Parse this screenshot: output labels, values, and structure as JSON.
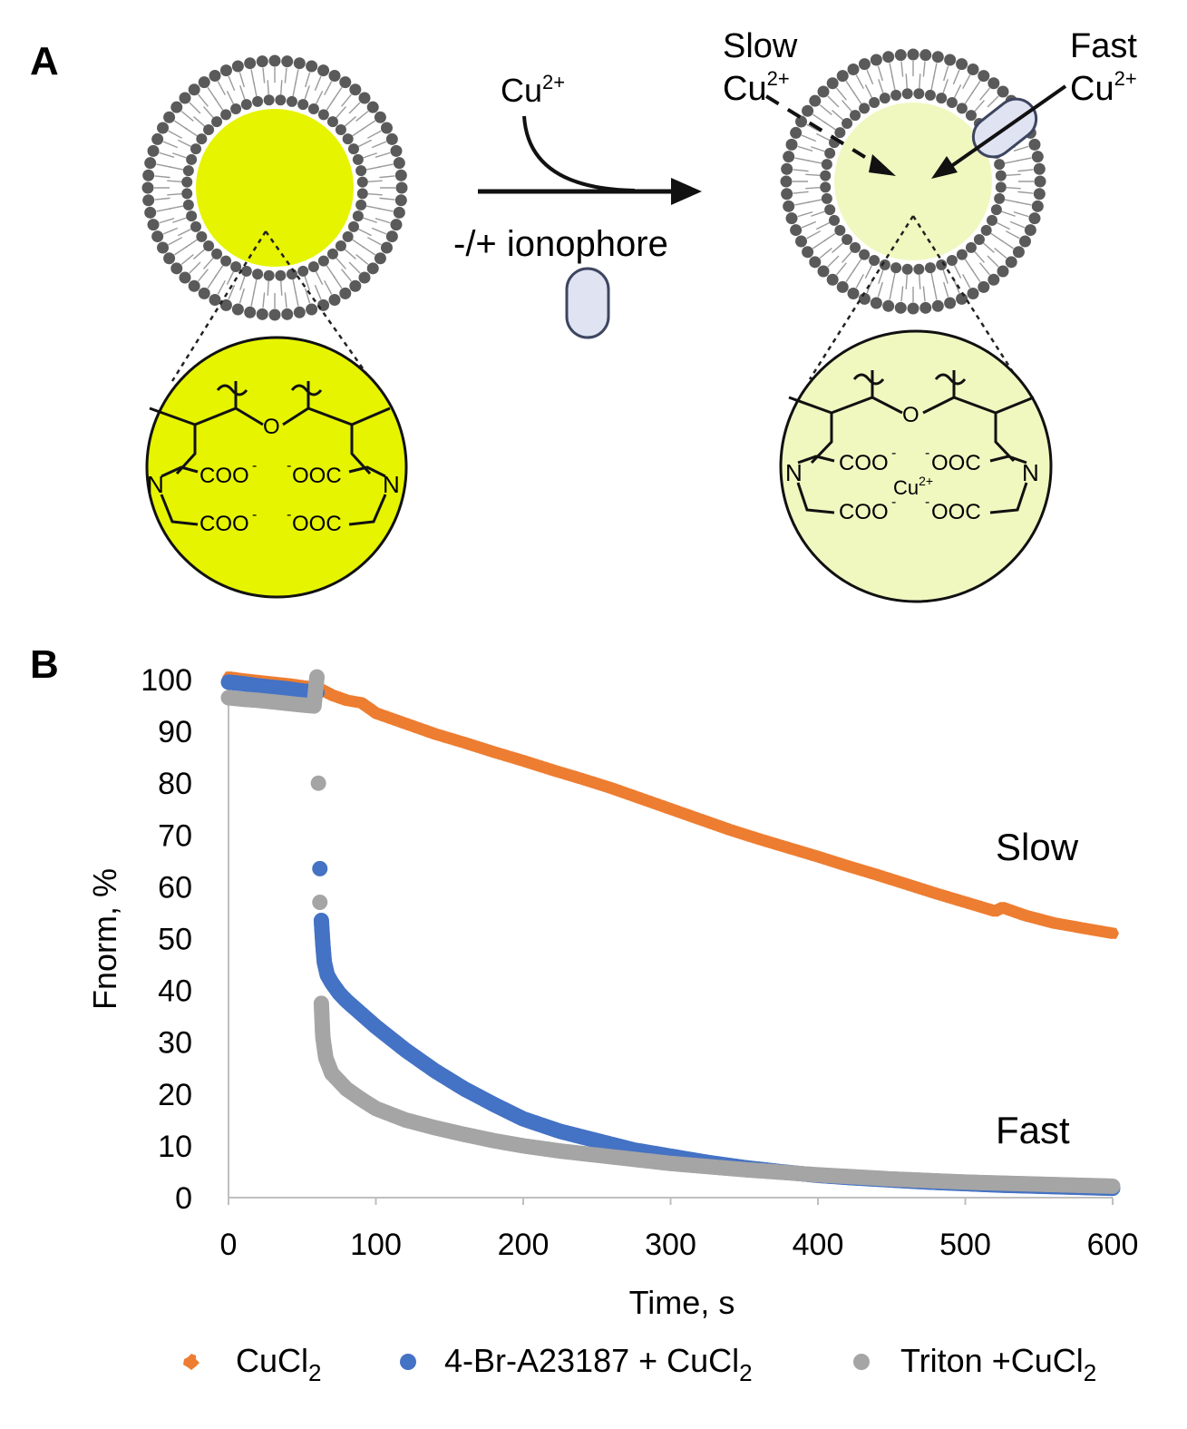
{
  "panel_a": {
    "label": "A",
    "ion_label": "Cu",
    "ion_charge": "2+",
    "ionophore_label": "-/+ ionophore",
    "slow_label": "Slow",
    "fast_label": "Fast",
    "coo_label": "COO",
    "ooc_label": "OOC",
    "minus_sign": "-",
    "n_label": "N",
    "o_label": "O",
    "dye_color_before": "#e6f400",
    "dye_color_after": "#f0f8c0",
    "ionophore_color": "#dfe3f2",
    "ionophore_stroke": "#3d4560",
    "lipid_head_color": "#5a5a5a"
  },
  "panel_b": {
    "label": "B",
    "slow_annotation": "Slow",
    "fast_annotation": "Fast"
  },
  "legend": {
    "items": [
      {
        "text": "CuCl",
        "sub": "2"
      },
      {
        "text": "4-Br-A23187 + CuCl",
        "sub": "2"
      },
      {
        "text": "Triton +CuCl",
        "sub": "2"
      }
    ]
  },
  "chart_data": {
    "type": "scatter",
    "xlabel": "Time, s",
    "ylabel": "Fnorm, %",
    "xlim": [
      0,
      600
    ],
    "ylim": [
      0,
      100
    ],
    "xticks": [
      0,
      100,
      200,
      300,
      400,
      500,
      600
    ],
    "yticks": [
      0,
      10,
      20,
      30,
      40,
      50,
      60,
      70,
      80,
      90,
      100
    ],
    "grid": false,
    "legend_position": "bottom",
    "series": [
      {
        "name": "CuCl2",
        "color": "#ed7d31",
        "marker": "star",
        "points": [
          [
            0,
            100.5
          ],
          [
            10,
            100.1
          ],
          [
            20,
            99.8
          ],
          [
            30,
            99.5
          ],
          [
            40,
            99.2
          ],
          [
            50,
            98.8
          ],
          [
            60,
            98.5
          ],
          [
            70,
            97.0
          ],
          [
            80,
            96.0
          ],
          [
            90,
            95.5
          ],
          [
            100,
            93.5
          ],
          [
            120,
            91.5
          ],
          [
            140,
            89.5
          ],
          [
            160,
            87.8
          ],
          [
            180,
            86.0
          ],
          [
            200,
            84.3
          ],
          [
            220,
            82.5
          ],
          [
            240,
            80.8
          ],
          [
            260,
            79.0
          ],
          [
            280,
            77.0
          ],
          [
            300,
            75.0
          ],
          [
            320,
            73.0
          ],
          [
            340,
            71.0
          ],
          [
            360,
            69.2
          ],
          [
            380,
            67.5
          ],
          [
            400,
            65.8
          ],
          [
            420,
            64.0
          ],
          [
            440,
            62.3
          ],
          [
            460,
            60.5
          ],
          [
            480,
            58.7
          ],
          [
            500,
            57.0
          ],
          [
            520,
            55.3
          ],
          [
            525,
            56.0
          ],
          [
            540,
            54.5
          ],
          [
            560,
            53.0
          ],
          [
            580,
            52.0
          ],
          [
            600,
            51.0
          ]
        ]
      },
      {
        "name": "4-Br-A23187 + CuCl2",
        "color": "#4472c4",
        "marker": "circle",
        "points": [
          [
            0,
            99.5
          ],
          [
            10,
            99.2
          ],
          [
            20,
            98.8
          ],
          [
            30,
            98.5
          ],
          [
            40,
            98.2
          ],
          [
            50,
            97.8
          ],
          [
            60,
            97.5
          ],
          [
            62,
            63.5
          ],
          [
            63,
            53.5
          ],
          [
            64,
            49
          ],
          [
            65,
            45.5
          ],
          [
            67,
            43
          ],
          [
            70,
            41.5
          ],
          [
            75,
            39.5
          ],
          [
            80,
            38
          ],
          [
            90,
            35.5
          ],
          [
            100,
            33
          ],
          [
            120,
            28.5
          ],
          [
            140,
            24.5
          ],
          [
            160,
            21
          ],
          [
            180,
            18
          ],
          [
            200,
            15.2
          ],
          [
            225,
            12.8
          ],
          [
            250,
            11
          ],
          [
            275,
            9.2
          ],
          [
            300,
            8
          ],
          [
            325,
            6.8
          ],
          [
            350,
            5.8
          ],
          [
            375,
            5.0
          ],
          [
            400,
            4.3
          ],
          [
            425,
            3.8
          ],
          [
            450,
            3.4
          ],
          [
            475,
            3.0
          ],
          [
            500,
            2.7
          ],
          [
            525,
            2.4
          ],
          [
            550,
            2.2
          ],
          [
            575,
            2.0
          ],
          [
            600,
            1.8
          ]
        ]
      },
      {
        "name": "Triton +CuCl2",
        "color": "#a5a5a5",
        "marker": "circle",
        "points": [
          [
            0,
            96.5
          ],
          [
            10,
            96.2
          ],
          [
            20,
            96.0
          ],
          [
            30,
            95.7
          ],
          [
            40,
            95.4
          ],
          [
            50,
            95.1
          ],
          [
            58,
            94.9
          ],
          [
            60,
            100.5
          ],
          [
            61,
            80
          ],
          [
            62,
            57
          ],
          [
            63,
            37.5
          ],
          [
            64,
            31
          ],
          [
            65,
            29
          ],
          [
            66,
            27
          ],
          [
            68,
            25.5
          ],
          [
            70,
            24
          ],
          [
            75,
            22.5
          ],
          [
            80,
            21
          ],
          [
            90,
            19
          ],
          [
            100,
            17.2
          ],
          [
            120,
            15
          ],
          [
            140,
            13.5
          ],
          [
            160,
            12.2
          ],
          [
            180,
            11
          ],
          [
            200,
            10
          ],
          [
            225,
            9
          ],
          [
            250,
            8.2
          ],
          [
            275,
            7.4
          ],
          [
            300,
            6.6
          ],
          [
            325,
            6.0
          ],
          [
            350,
            5.4
          ],
          [
            375,
            4.9
          ],
          [
            400,
            4.4
          ],
          [
            425,
            4.0
          ],
          [
            450,
            3.6
          ],
          [
            475,
            3.3
          ],
          [
            500,
            3.0
          ],
          [
            525,
            2.8
          ],
          [
            550,
            2.6
          ],
          [
            575,
            2.4
          ],
          [
            600,
            2.2
          ]
        ]
      }
    ]
  }
}
